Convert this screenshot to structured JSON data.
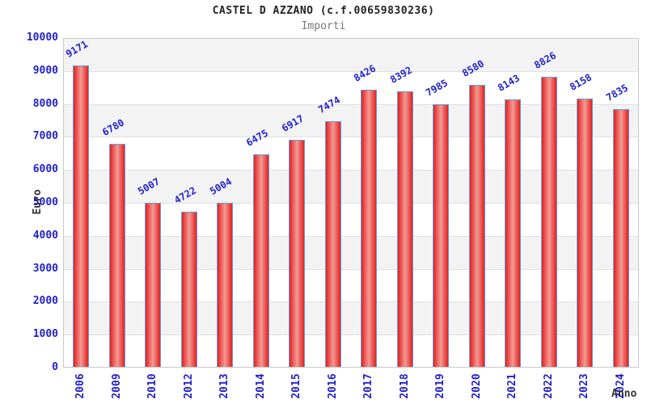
{
  "header": {
    "title": "CASTEL D AZZANO (c.f.00659830236)",
    "subtitle": "Importi"
  },
  "chart_data": {
    "type": "bar",
    "title": "CASTEL D AZZANO (c.f.00659830236)",
    "subtitle": "Importi",
    "categories": [
      "2006",
      "2009",
      "2010",
      "2012",
      "2013",
      "2014",
      "2015",
      "2016",
      "2017",
      "2018",
      "2019",
      "2020",
      "2021",
      "2022",
      "2023",
      "2024"
    ],
    "values": [
      9171,
      6780,
      5007,
      4722,
      5004,
      6475,
      6917,
      7474,
      8426,
      8392,
      7985,
      8580,
      8143,
      8826,
      8158,
      7835
    ],
    "xlabel": "Anno",
    "ylabel": "Euro",
    "ylim": [
      0,
      10000
    ],
    "ytick_step": 1000,
    "ytick_labels": [
      "0",
      "1000",
      "2000",
      "3000",
      "4000",
      "5000",
      "6000",
      "7000",
      "8000",
      "9000",
      "10000"
    ],
    "grid": "horizontal",
    "legend": "none",
    "bar_value_label_rotation_deg": -30,
    "x_tick_rotation_deg": -90,
    "colors": {
      "bar_edge": "#e42020",
      "bar_center": "#f29b94",
      "bar_border": "#64a0d8",
      "tick_text": "#2222cc",
      "value_label_text": "#2222cc",
      "band_alt": "#f3f3f3",
      "band_main": "#ffffff",
      "gridline": "#e0e0e0",
      "frame": "#c9c9c9",
      "axis_label_text": "#333333",
      "title_text": "#222222",
      "subtitle_text": "#777777"
    }
  }
}
